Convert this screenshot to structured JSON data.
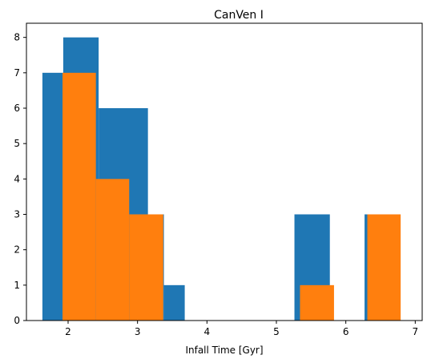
{
  "chart_data": {
    "type": "bar",
    "title": "CanVen I",
    "xlabel": "Infall Time [Gyr]",
    "ylabel": "",
    "xlim": [
      1.4,
      7.1
    ],
    "ylim": [
      0,
      8.4
    ],
    "xticks": [
      2,
      3,
      4,
      5,
      6,
      7
    ],
    "yticks": [
      0,
      1,
      2,
      3,
      4,
      5,
      6,
      7,
      8
    ],
    "grid": false,
    "series": [
      {
        "color": "#1f77b4",
        "bins": [
          {
            "x0": 1.63,
            "x1": 1.93,
            "value": 7
          },
          {
            "x0": 1.93,
            "x1": 2.44,
            "value": 8
          },
          {
            "x0": 2.44,
            "x1": 3.15,
            "value": 6
          },
          {
            "x0": 3.15,
            "x1": 3.38,
            "value": 3
          },
          {
            "x0": 3.38,
            "x1": 3.68,
            "value": 1
          },
          {
            "x0": 5.26,
            "x1": 5.77,
            "value": 3
          },
          {
            "x0": 6.27,
            "x1": 6.77,
            "value": 3
          }
        ]
      },
      {
        "color": "#ff7f0e",
        "bins": [
          {
            "x0": 1.92,
            "x1": 2.4,
            "value": 7
          },
          {
            "x0": 2.4,
            "x1": 2.88,
            "value": 4
          },
          {
            "x0": 2.88,
            "x1": 3.37,
            "value": 3
          },
          {
            "x0": 5.34,
            "x1": 5.83,
            "value": 1
          },
          {
            "x0": 6.31,
            "x1": 6.79,
            "value": 3
          }
        ]
      }
    ]
  }
}
